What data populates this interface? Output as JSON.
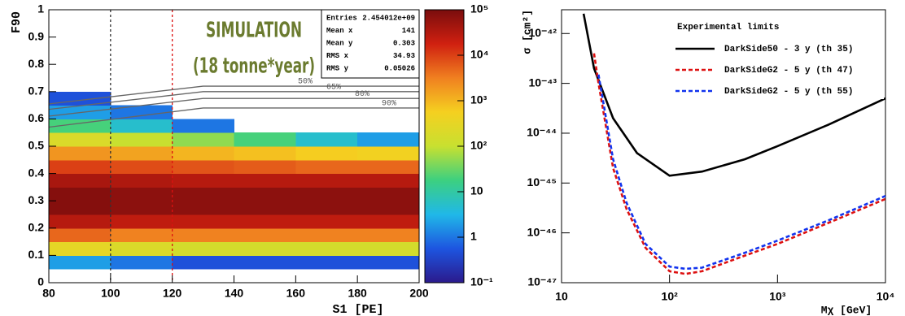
{
  "chart_data": [
    {
      "type": "heatmap",
      "annotations": [
        "SIMULATION",
        "(18 tonne*year)"
      ],
      "xlabel": "S1 [PE]",
      "ylabel": "F90",
      "xlim": [
        80,
        200
      ],
      "xticks": [
        80,
        100,
        120,
        140,
        160,
        180,
        200
      ],
      "ylim": [
        0,
        1
      ],
      "yticks": [
        0,
        0.1,
        0.2,
        0.3,
        0.4,
        0.5,
        0.6,
        0.7,
        0.8,
        0.9,
        1
      ],
      "x_bins": [
        80,
        100,
        120,
        140,
        160,
        180,
        200
      ],
      "y_bins": [
        0.05,
        0.1,
        0.15,
        0.2,
        0.25,
        0.3,
        0.35,
        0.4,
        0.45,
        0.5,
        0.55,
        0.6,
        0.65,
        0.7
      ],
      "z": [
        [
          2,
          1,
          0.5,
          0.5,
          0.5,
          0.5
        ],
        [
          300,
          200,
          150,
          150,
          150,
          150
        ],
        [
          5000,
          3000,
          3000,
          3000,
          3000,
          3000
        ],
        [
          30000,
          25000,
          25000,
          25000,
          25000,
          25000
        ],
        [
          80000,
          70000,
          70000,
          70000,
          70000,
          70000
        ],
        [
          80000,
          70000,
          70000,
          70000,
          70000,
          70000
        ],
        [
          40000,
          35000,
          30000,
          30000,
          30000,
          30000
        ],
        [
          10000,
          8000,
          7000,
          6000,
          5000,
          5000
        ],
        [
          2000,
          1500,
          1000,
          800,
          600,
          500
        ],
        [
          200,
          100,
          50,
          20,
          5,
          2
        ],
        [
          20,
          5,
          1,
          null,
          null,
          null
        ],
        [
          2,
          1,
          null,
          null,
          null,
          null
        ],
        [
          0.5,
          null,
          null,
          null,
          null,
          null
        ]
      ],
      "zlim": [
        0.1,
        100000
      ],
      "zticks": [
        {
          "value": 0.1,
          "label": "10⁻¹"
        },
        1,
        10,
        {
          "value": 100,
          "label": "10²"
        },
        {
          "value": 1000,
          "label": "10³"
        },
        {
          "value": 10000,
          "label": "10⁴"
        },
        {
          "value": 100000,
          "label": "10⁵"
        }
      ],
      "palette": [
        "#2b1a8c",
        "#1d55e0",
        "#20b8e8",
        "#3cd080",
        "#c8e030",
        "#f5d020",
        "#f08020",
        "#d02010",
        "#7a0d0d"
      ],
      "markers": [
        {
          "x": 100,
          "color": "#333333"
        },
        {
          "x": 120,
          "color": "#dd1111"
        }
      ],
      "contours": [
        {
          "label": "50%",
          "x": [
            80,
            130,
            200
          ],
          "y": [
            0.655,
            0.72,
            0.72
          ]
        },
        {
          "label": "65%",
          "x": [
            80,
            130,
            200
          ],
          "y": [
            0.635,
            0.7,
            0.7
          ]
        },
        {
          "label": "80%",
          "x": [
            80,
            130,
            200
          ],
          "y": [
            0.61,
            0.675,
            0.675
          ]
        },
        {
          "label": "90%",
          "x": [
            80,
            130,
            200
          ],
          "y": [
            0.57,
            0.64,
            0.64
          ]
        }
      ],
      "stats": [
        [
          "Entries",
          "2.454012e+09"
        ],
        [
          "Mean x",
          "141"
        ],
        [
          "Mean y",
          "0.303"
        ],
        [
          "RMS x",
          "34.93"
        ],
        [
          "RMS y",
          "0.05026"
        ]
      ]
    },
    {
      "type": "line",
      "log_x": true,
      "log_y": true,
      "xlabel": "Mχ [GeV]",
      "ylabel": "σ [cm²]",
      "legend_title": "Experimental limits",
      "xlim": [
        10,
        10000
      ],
      "xticks": [
        10,
        {
          "value": 100,
          "label": "10²"
        },
        {
          "value": 1000,
          "label": "10³"
        },
        {
          "value": 10000,
          "label": "10⁴"
        }
      ],
      "ylim": [
        1e-47,
        3e-42
      ],
      "yticks": [
        {
          "value": 1e-47,
          "label": "10⁻⁴⁷"
        },
        {
          "value": 1e-46,
          "label": "10⁻⁴⁶"
        },
        {
          "value": 1e-45,
          "label": "10⁻⁴⁵"
        },
        {
          "value": 1e-44,
          "label": "10⁻⁴⁴"
        },
        {
          "value": 1e-43,
          "label": "10⁻⁴³"
        },
        {
          "value": 1e-42,
          "label": "10⁻⁴²"
        }
      ],
      "series": [
        {
          "name": "DarkSide50 - 3 y (th 35)",
          "color": "#000000",
          "dash": false,
          "x": [
            16,
            20,
            30,
            50,
            100,
            200,
            500,
            1000,
            3000,
            10000
          ],
          "values": [
            2.5e-42,
            2e-43,
            2e-44,
            4e-45,
            1.4e-45,
            1.7e-45,
            3e-45,
            5.5e-45,
            1.5e-44,
            5e-44
          ]
        },
        {
          "name": "DarkSideG2 - 5 y (th 47)",
          "color": "#dd1111",
          "dash": true,
          "x": [
            20,
            22,
            25,
            30,
            40,
            60,
            100,
            140,
            200,
            500,
            1000,
            3000,
            10000
          ],
          "values": [
            4e-43,
            1e-43,
            2e-44,
            2e-45,
            3e-46,
            5e-47,
            1.7e-47,
            1.5e-47,
            1.7e-47,
            3.5e-47,
            6e-47,
            1.6e-46,
            4.8e-46
          ]
        },
        {
          "name": "DarkSideG2 - 5 y (th 55)",
          "color": "#1133ee",
          "dash": true,
          "x": [
            22,
            25,
            30,
            40,
            60,
            100,
            140,
            200,
            500,
            1000,
            3000,
            10000
          ],
          "values": [
            1.5e-43,
            3e-44,
            3e-45,
            4e-46,
            6e-47,
            2.1e-47,
            1.9e-47,
            2e-47,
            4e-47,
            7e-47,
            1.8e-46,
            5.5e-46
          ]
        }
      ]
    }
  ]
}
